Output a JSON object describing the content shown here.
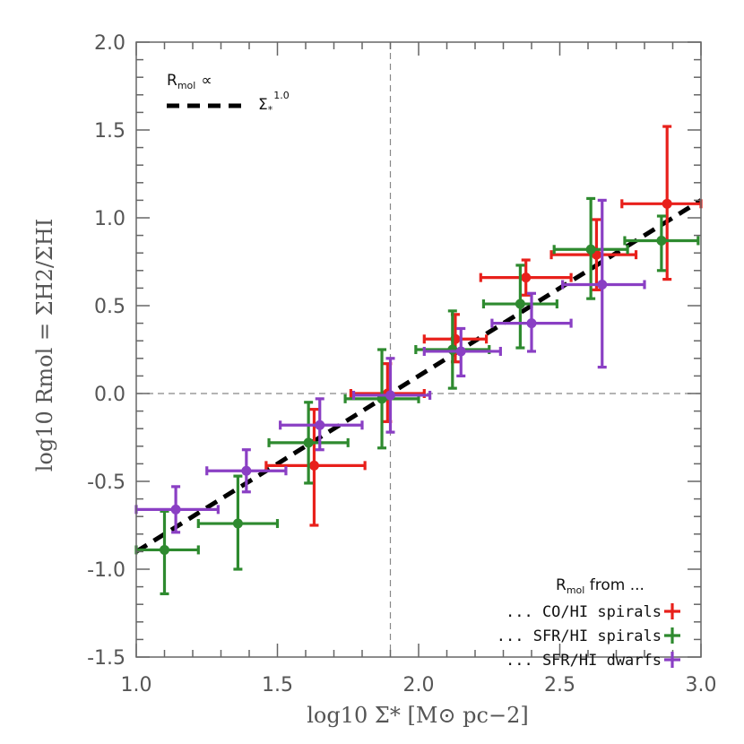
{
  "chart_data": {
    "type": "scatter",
    "xlabel": "log10 Σ* [M⊙ pc−2]",
    "ylabel": "log10 Rmol = ΣH2/ΣHI",
    "xlim": [
      1.0,
      3.0
    ],
    "ylim": [
      -1.5,
      2.0
    ],
    "xticks": [
      "1.0",
      "1.5",
      "2.0",
      "2.5",
      "3.0"
    ],
    "yticks": [
      "2.0",
      "1.5",
      "1.0",
      "0.5",
      "0.0",
      "-0.5",
      "-1.0",
      "-1.5"
    ],
    "ref_lines": {
      "x": 1.9,
      "y": 0.0
    },
    "fit_line": {
      "slope": 1.0,
      "x0": 1.9,
      "y0": 0.0
    },
    "fit_legend": {
      "prefix": "R",
      "prefix_sub": "mol",
      "propto": "∝",
      "sigma": "Σ",
      "sigma_sub": "*",
      "exponent": "1.0"
    },
    "legend_title": {
      "prefix": "R",
      "sub": "mol",
      "suffix": " from ..."
    },
    "series": [
      {
        "name": "... CO/HI spirals",
        "color": "#e8201b",
        "points": [
          {
            "x": 1.63,
            "y": -0.41,
            "xlo": 1.46,
            "xhi": 1.81,
            "ylo": -0.75,
            "yhi": -0.09
          },
          {
            "x": 1.89,
            "y": 0.0,
            "xlo": 1.76,
            "xhi": 2.02,
            "ylo": -0.16,
            "yhi": 0.17
          },
          {
            "x": 2.13,
            "y": 0.31,
            "xlo": 2.02,
            "xhi": 2.24,
            "ylo": 0.18,
            "yhi": 0.45
          },
          {
            "x": 2.38,
            "y": 0.66,
            "xlo": 2.22,
            "xhi": 2.54,
            "ylo": 0.56,
            "yhi": 0.76
          },
          {
            "x": 2.63,
            "y": 0.79,
            "xlo": 2.47,
            "xhi": 2.77,
            "ylo": 0.59,
            "yhi": 0.99
          },
          {
            "x": 2.88,
            "y": 1.08,
            "xlo": 2.72,
            "xhi": 3.02,
            "ylo": 0.65,
            "yhi": 1.52
          }
        ]
      },
      {
        "name": "... SFR/HI spirals",
        "color": "#2e8a2f",
        "points": [
          {
            "x": 1.1,
            "y": -0.89,
            "xlo": 0.98,
            "xhi": 1.22,
            "ylo": -1.14,
            "yhi": -0.67
          },
          {
            "x": 1.36,
            "y": -0.74,
            "xlo": 1.22,
            "xhi": 1.5,
            "ylo": -1.0,
            "yhi": -0.47
          },
          {
            "x": 1.61,
            "y": -0.28,
            "xlo": 1.47,
            "xhi": 1.75,
            "ylo": -0.51,
            "yhi": -0.05
          },
          {
            "x": 1.87,
            "y": -0.03,
            "xlo": 1.74,
            "xhi": 2.0,
            "ylo": -0.31,
            "yhi": 0.25
          },
          {
            "x": 2.12,
            "y": 0.25,
            "xlo": 1.99,
            "xhi": 2.25,
            "ylo": 0.03,
            "yhi": 0.47
          },
          {
            "x": 2.36,
            "y": 0.51,
            "xlo": 2.23,
            "xhi": 2.49,
            "ylo": 0.26,
            "yhi": 0.73
          },
          {
            "x": 2.61,
            "y": 0.82,
            "xlo": 2.48,
            "xhi": 2.74,
            "ylo": 0.54,
            "yhi": 1.11
          },
          {
            "x": 2.86,
            "y": 0.87,
            "xlo": 2.73,
            "xhi": 2.99,
            "ylo": 0.7,
            "yhi": 1.01
          }
        ]
      },
      {
        "name": "... SFR/HI dwarfs",
        "color": "#8a3fc4",
        "points": [
          {
            "x": 1.14,
            "y": -0.66,
            "xlo": 0.99,
            "xhi": 1.29,
            "ylo": -0.79,
            "yhi": -0.53
          },
          {
            "x": 1.39,
            "y": -0.44,
            "xlo": 1.25,
            "xhi": 1.53,
            "ylo": -0.56,
            "yhi": -0.32
          },
          {
            "x": 1.65,
            "y": -0.18,
            "xlo": 1.51,
            "xhi": 1.8,
            "ylo": -0.32,
            "yhi": -0.03
          },
          {
            "x": 1.9,
            "y": -0.01,
            "xlo": 1.77,
            "xhi": 2.04,
            "ylo": -0.22,
            "yhi": 0.2
          },
          {
            "x": 2.15,
            "y": 0.24,
            "xlo": 2.02,
            "xhi": 2.29,
            "ylo": 0.1,
            "yhi": 0.37
          },
          {
            "x": 2.4,
            "y": 0.4,
            "xlo": 2.26,
            "xhi": 2.54,
            "ylo": 0.24,
            "yhi": 0.57
          },
          {
            "x": 2.65,
            "y": 0.62,
            "xlo": 2.51,
            "xhi": 2.8,
            "ylo": 0.15,
            "yhi": 1.1
          }
        ]
      }
    ]
  }
}
